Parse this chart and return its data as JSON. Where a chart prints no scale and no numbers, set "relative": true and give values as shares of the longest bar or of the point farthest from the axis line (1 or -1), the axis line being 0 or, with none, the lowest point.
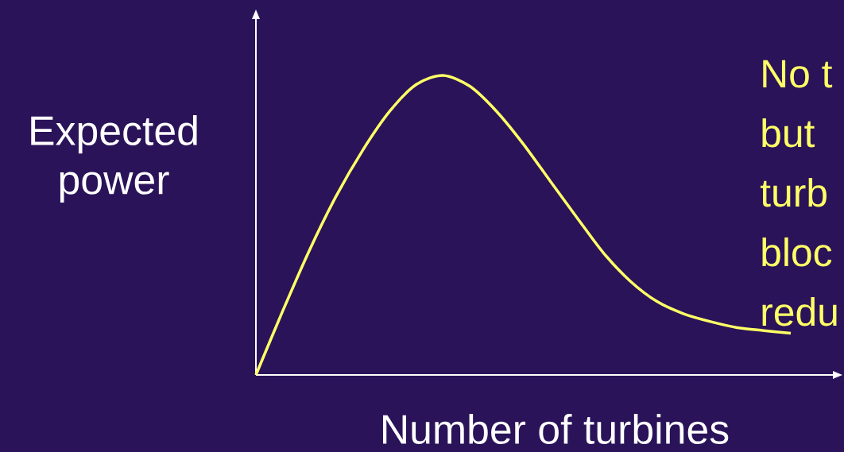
{
  "chart_data": {
    "type": "line",
    "relative": true,
    "xlabel": "Number of turbines",
    "ylabel": "Expected power",
    "categories": [
      null,
      null,
      null,
      null,
      null,
      null,
      null,
      null,
      null,
      null,
      null,
      null,
      null,
      null,
      null,
      null,
      null,
      null,
      null,
      null,
      null
    ],
    "series": [
      {
        "color": "#ffff66",
        "values": [
          0,
          0.213,
          0.416,
          0.597,
          0.751,
          0.88,
          0.97,
          1.0,
          0.964,
          0.88,
          0.771,
          0.648,
          0.526,
          0.407,
          0.313,
          0.245,
          0.204,
          0.178,
          0.158,
          0.148,
          0.139
        ]
      }
    ],
    "annotations": [
      "No t",
      "but",
      "turb",
      "bloc",
      "redu"
    ],
    "marker": "none"
  }
}
